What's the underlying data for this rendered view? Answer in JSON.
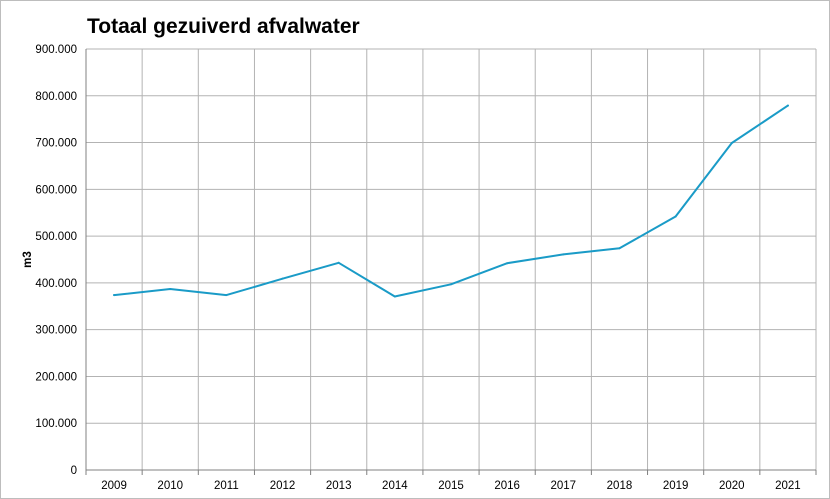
{
  "chart_data": {
    "type": "line",
    "title": "Totaal gezuiverd afvalwater",
    "xlabel": "",
    "ylabel": "m3",
    "categories": [
      "2009",
      "2010",
      "2011",
      "2012",
      "2013",
      "2014",
      "2015",
      "2016",
      "2017",
      "2018",
      "2019",
      "2020",
      "2021"
    ],
    "series": [
      {
        "values": [
          374000,
          387000,
          374000,
          409000,
          443000,
          371000,
          397000,
          442000,
          461000,
          474000,
          542000,
          699000,
          779000
        ]
      }
    ],
    "ylim": [
      0,
      900000
    ],
    "yticks": [
      0,
      100000,
      200000,
      300000,
      400000,
      500000,
      600000,
      700000,
      800000,
      900000
    ],
    "ytick_labels": [
      "0",
      "100.000",
      "200.000",
      "300.000",
      "400.000",
      "500.000",
      "600.000",
      "700.000",
      "800.000",
      "900.000"
    ],
    "grid": true,
    "legend": "none",
    "colors": {
      "line": "#1a9bc7",
      "grid": "#b3b3b3",
      "axis": "#808080"
    }
  }
}
